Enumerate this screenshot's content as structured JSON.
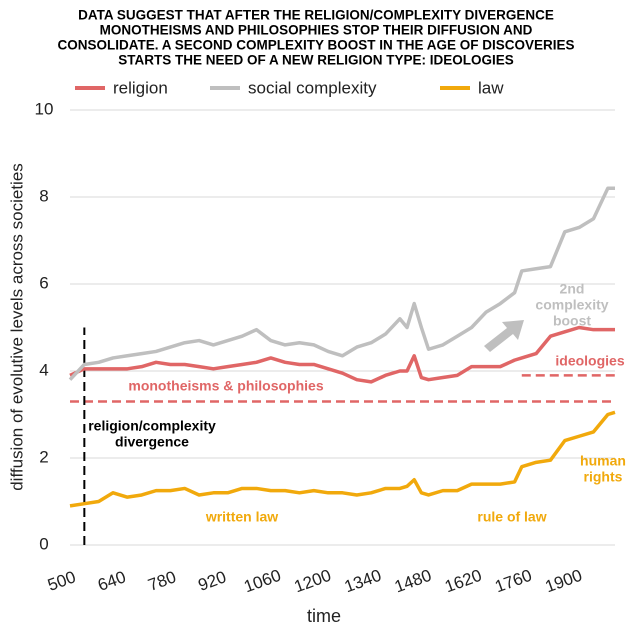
{
  "chart_data": {
    "type": "line",
    "title": [
      "DATA SUGGEST THAT AFTER THE RELIGION/COMPLEXITY DIVERGENCE",
      "MONOTHEISMS AND PHILOSOPHIES STOP THEIR DIFFUSION AND",
      "CONSOLIDATE. A SECOND COMPLEXITY BOOST IN THE AGE OF DISCOVERIES",
      "STARTS THE NEED OF A NEW RELIGION TYPE: IDEOLOGIES"
    ],
    "x_label": "time",
    "y_label": "diffusion of evolutive levels across societies",
    "x": [
      500,
      540,
      580,
      620,
      660,
      700,
      740,
      780,
      820,
      860,
      900,
      940,
      980,
      1020,
      1060,
      1100,
      1140,
      1180,
      1220,
      1260,
      1300,
      1340,
      1380,
      1420,
      1440,
      1460,
      1480,
      1500,
      1540,
      1580,
      1620,
      1660,
      1700,
      1740,
      1760,
      1800,
      1840,
      1880,
      1920,
      1960,
      2000,
      2020
    ],
    "series": [
      {
        "name": "religion",
        "color": "#e06666",
        "values": [
          3.9,
          4.05,
          4.05,
          4.05,
          4.05,
          4.1,
          4.2,
          4.15,
          4.15,
          4.1,
          4.05,
          4.1,
          4.15,
          4.2,
          4.3,
          4.2,
          4.15,
          4.15,
          4.05,
          3.95,
          3.8,
          3.75,
          3.9,
          4.0,
          4.0,
          4.35,
          3.85,
          3.8,
          3.85,
          3.9,
          4.1,
          4.1,
          4.1,
          4.25,
          4.3,
          4.4,
          4.8,
          4.9,
          5.0,
          4.95,
          4.95,
          4.95
        ]
      },
      {
        "name": "social complexity",
        "color": "#bfbfbf",
        "values": [
          3.8,
          4.15,
          4.2,
          4.3,
          4.35,
          4.4,
          4.45,
          4.55,
          4.65,
          4.7,
          4.6,
          4.7,
          4.8,
          4.95,
          4.7,
          4.6,
          4.65,
          4.6,
          4.45,
          4.35,
          4.55,
          4.65,
          4.85,
          5.2,
          5.0,
          5.55,
          5.0,
          4.5,
          4.6,
          4.8,
          5.0,
          5.35,
          5.55,
          5.8,
          6.3,
          6.35,
          6.4,
          7.2,
          7.3,
          7.5,
          8.2,
          8.2
        ]
      },
      {
        "name": "law",
        "color": "#f1a90c",
        "values": [
          0.9,
          0.95,
          1.0,
          1.2,
          1.1,
          1.15,
          1.25,
          1.25,
          1.3,
          1.15,
          1.2,
          1.2,
          1.3,
          1.3,
          1.25,
          1.25,
          1.2,
          1.25,
          1.2,
          1.2,
          1.15,
          1.2,
          1.3,
          1.3,
          1.35,
          1.5,
          1.2,
          1.15,
          1.25,
          1.25,
          1.4,
          1.4,
          1.4,
          1.45,
          1.8,
          1.9,
          1.95,
          2.4,
          2.5,
          2.6,
          3.0,
          3.05
        ]
      }
    ],
    "xlim": [
      500,
      2020
    ],
    "xticks": [
      500,
      640,
      780,
      920,
      1060,
      1200,
      1340,
      1480,
      1620,
      1760,
      1900
    ],
    "ylim": [
      0,
      10
    ],
    "yticks": [
      0,
      2,
      4,
      6,
      8,
      10
    ],
    "grid": true,
    "reference_lines": [
      {
        "y": 3.3,
        "x": [
          500,
          2020
        ],
        "color": "#e06666"
      },
      {
        "y": 3.9,
        "x": [
          1760,
          2020
        ],
        "color": "#e06666"
      },
      {
        "x": 540,
        "y": [
          0,
          5
        ],
        "color": "#000000"
      }
    ],
    "annotations": [
      {
        "text": [
          "monotheisms & philosophies"
        ],
        "color": "#e06666"
      },
      {
        "text": [
          "religion/complexity",
          "divergence"
        ],
        "color": "#000000"
      },
      {
        "text": [
          "written law"
        ],
        "color": "#f1a90c"
      },
      {
        "text": [
          "rule of law"
        ],
        "color": "#f1a90c"
      },
      {
        "text": [
          "human",
          "rights"
        ],
        "color": "#f1a90c"
      },
      {
        "text": [
          "ideologies"
        ],
        "color": "#e06666"
      },
      {
        "text": [
          "2nd",
          "complexity",
          "boost"
        ],
        "color": "#bfbfbf"
      }
    ]
  }
}
